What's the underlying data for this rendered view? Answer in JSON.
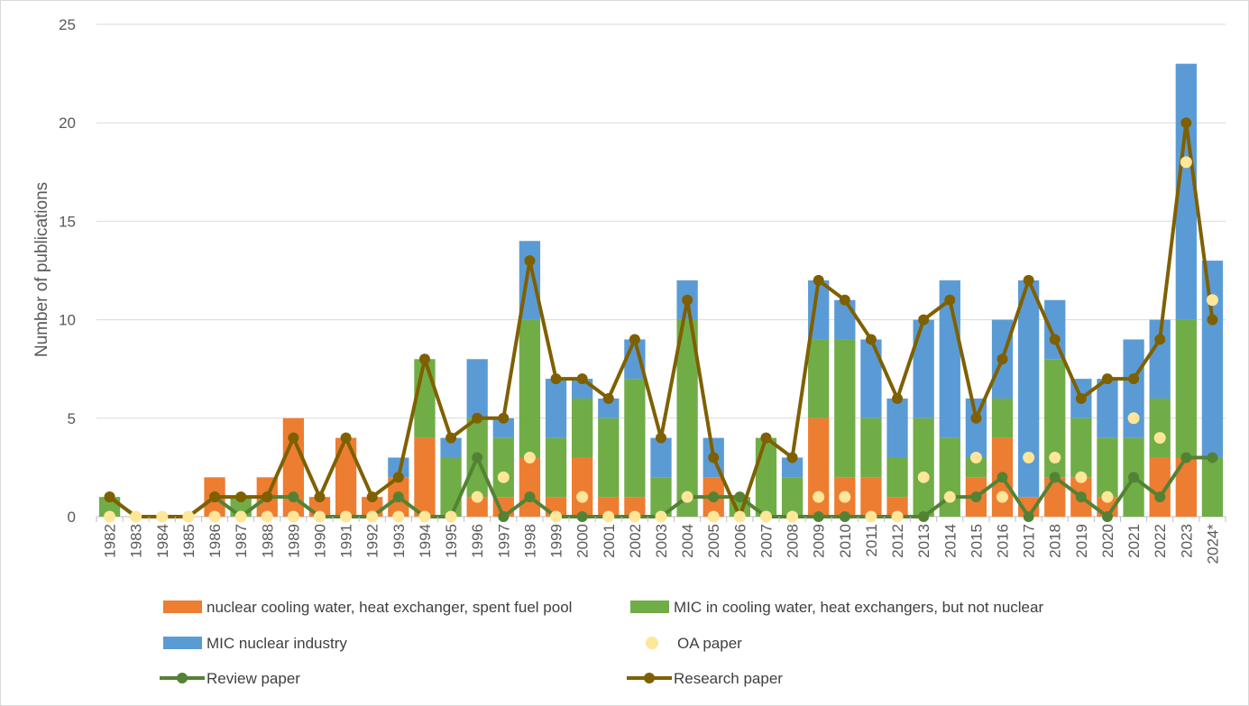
{
  "chart_data": {
    "type": "bar",
    "stacked": true,
    "title": "",
    "xlabel": "",
    "ylabel": "Number of publications",
    "ylim": [
      0,
      25
    ],
    "yticks": [
      0,
      5,
      10,
      15,
      20,
      25
    ],
    "grid": true,
    "legend_position": "bottom",
    "categories": [
      "1982",
      "1983",
      "1984",
      "1985",
      "1986",
      "1987",
      "1988",
      "1989",
      "1990",
      "1991",
      "1992",
      "1993",
      "1994",
      "1995",
      "1996",
      "1997",
      "1998",
      "1999",
      "2000",
      "2001",
      "2002",
      "2003",
      "2004",
      "2005",
      "2006",
      "2007",
      "2008",
      "2009",
      "2010",
      "2011",
      "2012",
      "2013",
      "2014",
      "2015",
      "2016",
      "2017",
      "2018",
      "2019",
      "2020",
      "2021",
      "2022",
      "2023",
      "2024*"
    ],
    "bar_series": [
      {
        "name": "nuclear cooling water, heat exchanger, spent fuel pool",
        "color": "#ED7D31",
        "values": [
          0,
          0,
          0,
          0,
          2,
          0,
          2,
          5,
          1,
          4,
          1,
          2,
          4,
          0,
          1,
          1,
          3,
          1,
          3,
          1,
          1,
          0,
          0,
          2,
          0,
          0,
          0,
          5,
          2,
          2,
          1,
          0,
          0,
          2,
          4,
          1,
          2,
          2,
          1,
          0,
          3,
          3,
          0
        ]
      },
      {
        "name": "MIC in cooling water, heat exchangers, but not nuclear",
        "color": "#70AD47",
        "values": [
          1,
          0,
          0,
          0,
          0,
          1,
          0,
          0,
          0,
          0,
          0,
          0,
          4,
          3,
          4,
          3,
          7,
          3,
          3,
          4,
          6,
          2,
          10,
          0,
          1,
          4,
          2,
          4,
          7,
          3,
          2,
          5,
          4,
          1,
          2,
          0,
          6,
          3,
          3,
          4,
          3,
          7,
          3
        ]
      },
      {
        "name": "MIC nuclear industry",
        "color": "#5B9BD5",
        "values": [
          0,
          0,
          0,
          0,
          0,
          0,
          0,
          0,
          0,
          0,
          0,
          1,
          0,
          1,
          3,
          1,
          4,
          3,
          1,
          1,
          2,
          2,
          2,
          2,
          0,
          0,
          1,
          3,
          2,
          4,
          3,
          5,
          8,
          3,
          4,
          11,
          3,
          2,
          3,
          5,
          4,
          13,
          10
        ]
      }
    ],
    "line_series": [
      {
        "name": "OA paper",
        "color": "#FFE699",
        "marker_only": true,
        "values": [
          0,
          0,
          0,
          0,
          0,
          0,
          0,
          0,
          0,
          0,
          0,
          0,
          0,
          0,
          1,
          2,
          3,
          0,
          1,
          0,
          0,
          0,
          1,
          0,
          0,
          0,
          0,
          1,
          1,
          0,
          0,
          2,
          1,
          3,
          1,
          3,
          3,
          2,
          1,
          5,
          4,
          18,
          11
        ]
      },
      {
        "name": "Review paper",
        "color": "#548235",
        "values": [
          1,
          0,
          0,
          0,
          1,
          0,
          1,
          1,
          0,
          0,
          0,
          1,
          0,
          0,
          3,
          0,
          1,
          0,
          0,
          0,
          0,
          0,
          1,
          1,
          1,
          0,
          0,
          0,
          0,
          0,
          0,
          0,
          1,
          1,
          2,
          0,
          2,
          1,
          0,
          2,
          1,
          3,
          3
        ]
      },
      {
        "name": "Research paper",
        "color": "#7F6000",
        "values": [
          1,
          0,
          0,
          0,
          1,
          1,
          1,
          4,
          1,
          4,
          1,
          2,
          8,
          4,
          5,
          5,
          13,
          7,
          7,
          6,
          9,
          4,
          11,
          3,
          0,
          4,
          3,
          12,
          11,
          9,
          6,
          10,
          11,
          5,
          8,
          12,
          9,
          6,
          7,
          7,
          9,
          20,
          10
        ]
      }
    ],
    "legend": [
      {
        "label": "nuclear cooling water, heat exchanger, spent fuel pool",
        "kind": "bar",
        "color": "#ED7D31"
      },
      {
        "label": "MIC in cooling water, heat exchangers, but not nuclear",
        "kind": "bar",
        "color": "#70AD47"
      },
      {
        "label": "MIC nuclear industry",
        "kind": "bar",
        "color": "#5B9BD5"
      },
      {
        "label": "OA paper",
        "kind": "marker",
        "color": "#FFE699"
      },
      {
        "label": "Review paper",
        "kind": "line",
        "color": "#548235"
      },
      {
        "label": "Research paper",
        "kind": "line",
        "color": "#7F6000"
      }
    ]
  }
}
